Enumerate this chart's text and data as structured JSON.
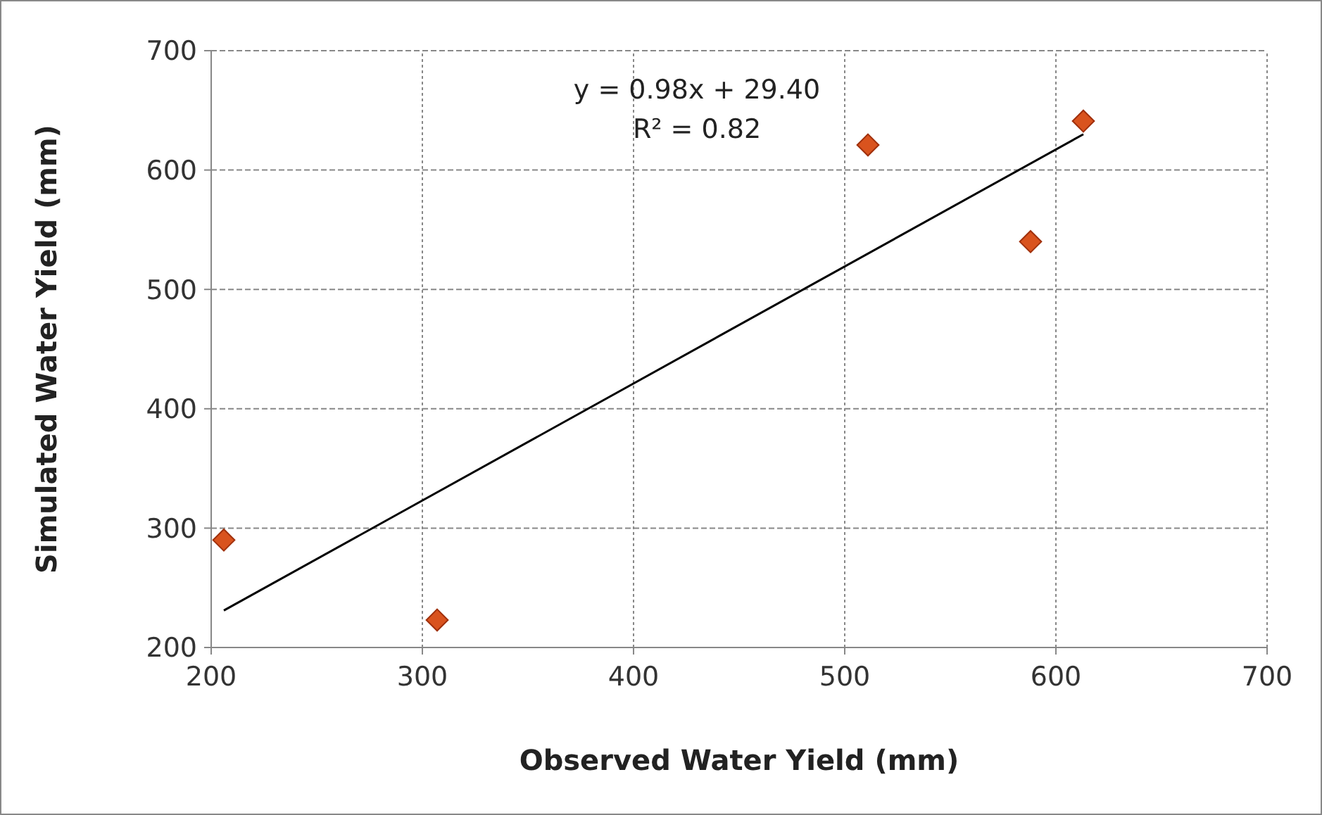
{
  "chart_data": {
    "type": "scatter",
    "xlabel": "Observed Water Yield (mm)",
    "ylabel": "Simulated Water Yield (mm)",
    "xlim": [
      200,
      700
    ],
    "xticks": [
      200,
      300,
      400,
      500,
      600,
      700
    ],
    "ylim": [
      200,
      700
    ],
    "yticks": [
      200,
      300,
      400,
      500,
      600,
      700
    ],
    "grid": true,
    "series": [
      {
        "color": "#d9531e",
        "marker": "diamond",
        "x": [
          206,
          307,
          511,
          588,
          613
        ],
        "values": [
          290,
          223,
          621,
          540,
          641
        ]
      },
      {
        "type": "line",
        "color": "#000000",
        "x": [
          206,
          613
        ],
        "values": [
          231,
          630
        ],
        "marker": "none"
      }
    ],
    "annotations": [
      "y = 0.98x + 29.40",
      "R² = 0.82"
    ]
  }
}
